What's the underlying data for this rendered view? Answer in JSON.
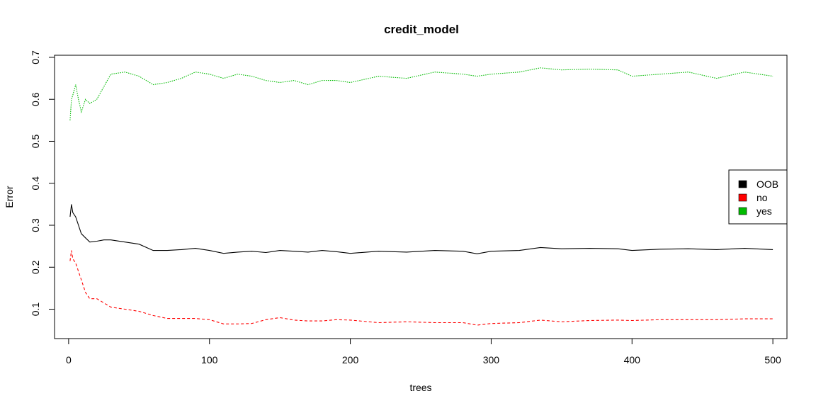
{
  "chart_data": {
    "type": "line",
    "title": "credit_model",
    "xlabel": "trees",
    "ylabel": "Error",
    "xlim": [
      -10,
      510
    ],
    "ylim": [
      0.03,
      0.705
    ],
    "x_ticks": [
      0,
      100,
      200,
      300,
      400,
      500
    ],
    "y_ticks": [
      0.1,
      0.2,
      0.3,
      0.4,
      0.5,
      0.6,
      0.7
    ],
    "x_tick_labels": [
      "0",
      "100",
      "200",
      "300",
      "400",
      "500"
    ],
    "y_tick_labels": [
      "0.1",
      "0.2",
      "0.3",
      "0.4",
      "0.5",
      "0.6",
      "0.7"
    ],
    "grid": false,
    "legend": {
      "placement": "right",
      "entries": [
        "OOB",
        "no",
        "yes"
      ]
    },
    "series": [
      {
        "name": "OOB",
        "color": "#000000",
        "dash": "solid",
        "x": [
          1,
          2,
          3,
          5,
          7,
          9,
          12,
          15,
          20,
          25,
          30,
          40,
          50,
          60,
          70,
          80,
          90,
          100,
          110,
          120,
          130,
          140,
          150,
          160,
          170,
          180,
          190,
          200,
          220,
          240,
          260,
          280,
          290,
          300,
          320,
          335,
          350,
          370,
          390,
          400,
          420,
          440,
          460,
          480,
          500
        ],
        "y": [
          0.32,
          0.35,
          0.33,
          0.32,
          0.3,
          0.28,
          0.27,
          0.26,
          0.262,
          0.265,
          0.265,
          0.26,
          0.255,
          0.24,
          0.24,
          0.242,
          0.245,
          0.24,
          0.233,
          0.236,
          0.238,
          0.235,
          0.24,
          0.238,
          0.236,
          0.24,
          0.237,
          0.233,
          0.238,
          0.236,
          0.24,
          0.238,
          0.232,
          0.238,
          0.24,
          0.247,
          0.244,
          0.245,
          0.244,
          0.24,
          0.243,
          0.244,
          0.242,
          0.245,
          0.242
        ]
      },
      {
        "name": "no",
        "color": "#ff0000",
        "dash": "dashed",
        "x": [
          1,
          2,
          3,
          5,
          7,
          9,
          12,
          15,
          20,
          25,
          30,
          40,
          50,
          60,
          70,
          80,
          90,
          100,
          110,
          120,
          130,
          140,
          150,
          160,
          170,
          180,
          190,
          200,
          220,
          240,
          260,
          280,
          290,
          300,
          320,
          335,
          350,
          370,
          390,
          400,
          420,
          440,
          460,
          480,
          500
        ],
        "y": [
          0.215,
          0.24,
          0.22,
          0.21,
          0.19,
          0.17,
          0.14,
          0.125,
          0.125,
          0.115,
          0.105,
          0.1,
          0.095,
          0.085,
          0.078,
          0.078,
          0.078,
          0.075,
          0.065,
          0.065,
          0.066,
          0.075,
          0.08,
          0.074,
          0.072,
          0.072,
          0.075,
          0.074,
          0.068,
          0.07,
          0.068,
          0.068,
          0.062,
          0.066,
          0.068,
          0.074,
          0.07,
          0.073,
          0.074,
          0.073,
          0.075,
          0.075,
          0.075,
          0.077,
          0.077
        ]
      },
      {
        "name": "yes",
        "color": "#00bb00",
        "dash": "dotted",
        "x": [
          1,
          2,
          3,
          5,
          7,
          9,
          12,
          15,
          20,
          25,
          30,
          40,
          50,
          60,
          70,
          80,
          90,
          100,
          110,
          120,
          130,
          140,
          150,
          160,
          170,
          180,
          190,
          200,
          220,
          240,
          260,
          280,
          290,
          300,
          320,
          335,
          350,
          370,
          390,
          400,
          420,
          440,
          460,
          480,
          500
        ],
        "y": [
          0.55,
          0.6,
          0.61,
          0.635,
          0.6,
          0.57,
          0.6,
          0.59,
          0.6,
          0.63,
          0.66,
          0.665,
          0.655,
          0.635,
          0.64,
          0.65,
          0.665,
          0.66,
          0.65,
          0.66,
          0.655,
          0.645,
          0.64,
          0.645,
          0.635,
          0.645,
          0.645,
          0.64,
          0.655,
          0.65,
          0.665,
          0.66,
          0.655,
          0.66,
          0.665,
          0.675,
          0.67,
          0.672,
          0.67,
          0.655,
          0.66,
          0.665,
          0.65,
          0.665,
          0.655
        ]
      }
    ]
  }
}
